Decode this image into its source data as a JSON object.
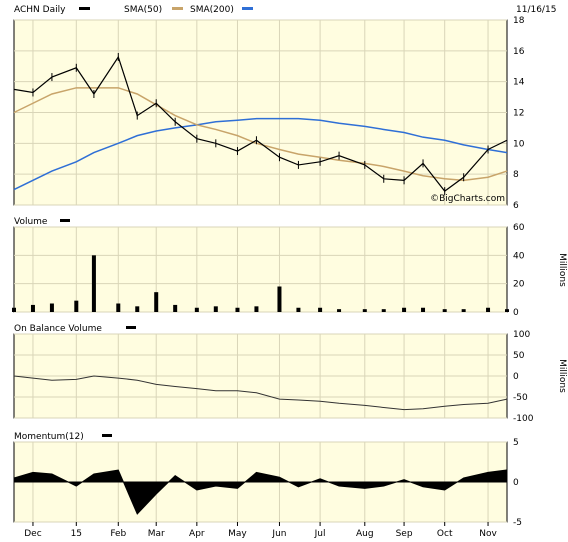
{
  "header": {
    "symbol_label": "ACHN Daily",
    "sma50_label": "SMA(50)",
    "sma200_label": "SMA(200)",
    "date": "11/16/15",
    "watermark": "©BigCharts.com"
  },
  "colors": {
    "plot_bg": "#fffde0",
    "price": "#000000",
    "sma50": "#c8a46a",
    "sma200": "#2f6fd6",
    "grid": "#d9d5b8"
  },
  "chart_data": [
    {
      "type": "line",
      "title": "ACHN Daily",
      "x": [
        "2014-11-17",
        "2014-12-01",
        "2014-12-15",
        "2015-01-02",
        "2015-01-15",
        "2015-02-02",
        "2015-02-16",
        "2015-03-02",
        "2015-03-16",
        "2015-04-01",
        "2015-04-15",
        "2015-05-01",
        "2015-05-15",
        "2015-06-01",
        "2015-06-15",
        "2015-07-01",
        "2015-07-15",
        "2015-08-03",
        "2015-08-17",
        "2015-09-01",
        "2015-09-15",
        "2015-10-01",
        "2015-10-15",
        "2015-11-02",
        "2015-11-16"
      ],
      "series": [
        {
          "name": "ACHN Daily",
          "values": [
            13.5,
            13.3,
            14.3,
            14.9,
            13.2,
            15.6,
            11.8,
            12.6,
            11.4,
            10.3,
            10.0,
            9.5,
            10.2,
            9.1,
            8.6,
            8.8,
            9.2,
            8.6,
            7.7,
            7.6,
            8.7,
            6.9,
            7.8,
            9.6,
            10.2
          ]
        },
        {
          "name": "SMA(50)",
          "values": [
            12.0,
            12.6,
            13.2,
            13.6,
            13.6,
            13.6,
            13.2,
            12.5,
            11.8,
            11.2,
            10.9,
            10.5,
            10.0,
            9.6,
            9.3,
            9.1,
            8.9,
            8.7,
            8.5,
            8.2,
            7.9,
            7.7,
            7.6,
            7.8,
            8.2
          ]
        },
        {
          "name": "SMA(200)",
          "values": [
            7.0,
            7.6,
            8.2,
            8.8,
            9.4,
            10.0,
            10.5,
            10.8,
            11.0,
            11.2,
            11.4,
            11.5,
            11.6,
            11.6,
            11.6,
            11.5,
            11.3,
            11.1,
            10.9,
            10.7,
            10.4,
            10.2,
            9.9,
            9.6,
            9.4
          ]
        }
      ],
      "ylim": [
        6,
        18
      ],
      "yticks": [
        6,
        8,
        10,
        12,
        14,
        16,
        18
      ]
    },
    {
      "type": "bar",
      "title": "Volume",
      "x": [
        "2014-11-17",
        "2014-12-01",
        "2014-12-15",
        "2015-01-02",
        "2015-01-15",
        "2015-02-02",
        "2015-02-16",
        "2015-03-02",
        "2015-03-16",
        "2015-04-01",
        "2015-04-15",
        "2015-05-01",
        "2015-05-15",
        "2015-06-01",
        "2015-06-15",
        "2015-07-01",
        "2015-07-15",
        "2015-08-03",
        "2015-08-17",
        "2015-09-01",
        "2015-09-15",
        "2015-10-01",
        "2015-10-15",
        "2015-11-02",
        "2015-11-16"
      ],
      "values": [
        3,
        5,
        6,
        8,
        40,
        6,
        4,
        14,
        5,
        3,
        4,
        3,
        4,
        18,
        3,
        3,
        2,
        2,
        2,
        3,
        3,
        2,
        2,
        3,
        2
      ],
      "ylabel": "Millions",
      "ylim": [
        0,
        60
      ],
      "yticks": [
        0,
        20,
        40,
        60
      ]
    },
    {
      "type": "line",
      "title": "On Balance Volume",
      "x": [
        "2014-11-17",
        "2014-12-01",
        "2014-12-15",
        "2015-01-02",
        "2015-01-15",
        "2015-02-02",
        "2015-02-16",
        "2015-03-02",
        "2015-03-16",
        "2015-04-01",
        "2015-04-15",
        "2015-05-01",
        "2015-05-15",
        "2015-06-01",
        "2015-06-15",
        "2015-07-01",
        "2015-07-15",
        "2015-08-03",
        "2015-08-17",
        "2015-09-01",
        "2015-09-15",
        "2015-10-01",
        "2015-10-15",
        "2015-11-02",
        "2015-11-16"
      ],
      "values": [
        0,
        -5,
        -10,
        -8,
        0,
        -5,
        -10,
        -20,
        -25,
        -30,
        -35,
        -35,
        -40,
        -55,
        -57,
        -60,
        -65,
        -70,
        -75,
        -80,
        -78,
        -72,
        -68,
        -65,
        -55
      ],
      "ylabel": "Millions",
      "ylim": [
        -100,
        100
      ],
      "yticks": [
        -100,
        -50,
        0,
        50,
        100
      ]
    },
    {
      "type": "area",
      "title": "Momentum(12)",
      "x": [
        "2014-11-17",
        "2014-12-01",
        "2014-12-15",
        "2015-01-02",
        "2015-01-15",
        "2015-02-02",
        "2015-02-16",
        "2015-03-02",
        "2015-03-16",
        "2015-04-01",
        "2015-04-15",
        "2015-05-01",
        "2015-05-15",
        "2015-06-01",
        "2015-06-15",
        "2015-07-01",
        "2015-07-15",
        "2015-08-03",
        "2015-08-17",
        "2015-09-01",
        "2015-09-15",
        "2015-10-01",
        "2015-10-15",
        "2015-11-02",
        "2015-11-16"
      ],
      "values": [
        0.5,
        1.2,
        1.0,
        -0.5,
        1.0,
        1.5,
        -4.0,
        -1.5,
        0.8,
        -1.0,
        -0.5,
        -0.8,
        1.2,
        0.6,
        -0.6,
        0.4,
        -0.5,
        -0.8,
        -0.5,
        0.3,
        -0.6,
        -1.0,
        0.5,
        1.2,
        1.5
      ],
      "ylim": [
        -5,
        5
      ],
      "yticks": [
        -5,
        0,
        5
      ]
    }
  ],
  "x_axis": {
    "labels": [
      "Dec",
      "15",
      "Feb",
      "Mar",
      "Apr",
      "May",
      "Jun",
      "Jul",
      "Aug",
      "Sep",
      "Oct",
      "Nov"
    ],
    "dates": [
      "2014-12-01",
      "2015-01-02",
      "2015-02-02",
      "2015-03-02",
      "2015-04-01",
      "2015-05-01",
      "2015-06-01",
      "2015-07-01",
      "2015-08-03",
      "2015-09-01",
      "2015-10-01",
      "2015-11-02"
    ]
  },
  "y_unit_label": "Millions"
}
